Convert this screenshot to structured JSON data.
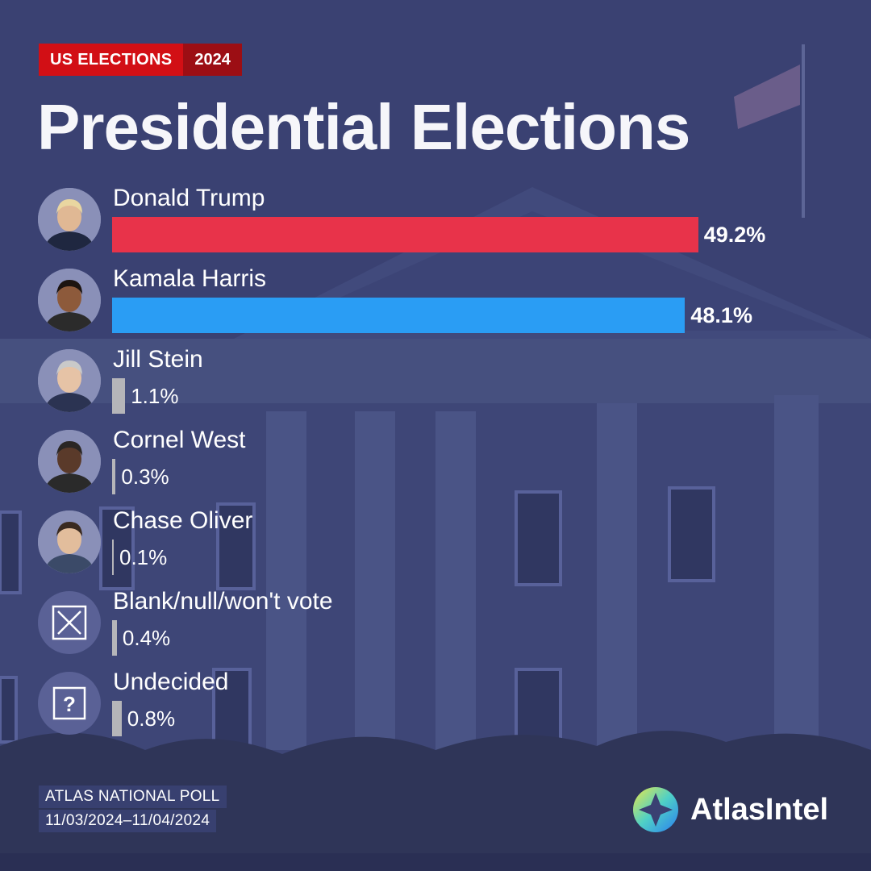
{
  "header": {
    "tag_primary": "US ELECTIONS",
    "tag_secondary": "2024",
    "title": "Presidential Elections"
  },
  "colors": {
    "background": "#3a4172",
    "tag_primary": "#d20f15",
    "tag_secondary": "#9c0e14",
    "trump_bar": "#e8334a",
    "harris_bar": "#2a9df4",
    "minor_bar": "#b5b5b9"
  },
  "chart_data": {
    "type": "bar",
    "orientation": "horizontal",
    "categories": [
      "Donald Trump",
      "Kamala Harris",
      "Jill Stein",
      "Cornel West",
      "Chase Oliver",
      "Blank/null/won't vote",
      "Undecided"
    ],
    "values": [
      49.2,
      48.1,
      1.1,
      0.3,
      0.1,
      0.4,
      0.8
    ],
    "value_labels": [
      "49.2%",
      "48.1%",
      "1.1%",
      "0.3%",
      "0.1%",
      "0.4%",
      "0.8%"
    ],
    "bar_colors": [
      "#e8334a",
      "#2a9df4",
      "#b5b5b9",
      "#b5b5b9",
      "#b5b5b9",
      "#b5b5b9",
      "#b5b5b9"
    ],
    "avatars": [
      "portrait",
      "portrait",
      "portrait",
      "portrait",
      "portrait",
      "x-box-icon",
      "question-box-icon"
    ],
    "title": "Presidential Elections",
    "xlabel": "",
    "ylabel": "",
    "grid": false
  },
  "footer": {
    "source_line1": "ATLAS NATIONAL POLL",
    "source_line2": "11/03/2024–11/04/2024",
    "brand": "AtlasIntel"
  }
}
